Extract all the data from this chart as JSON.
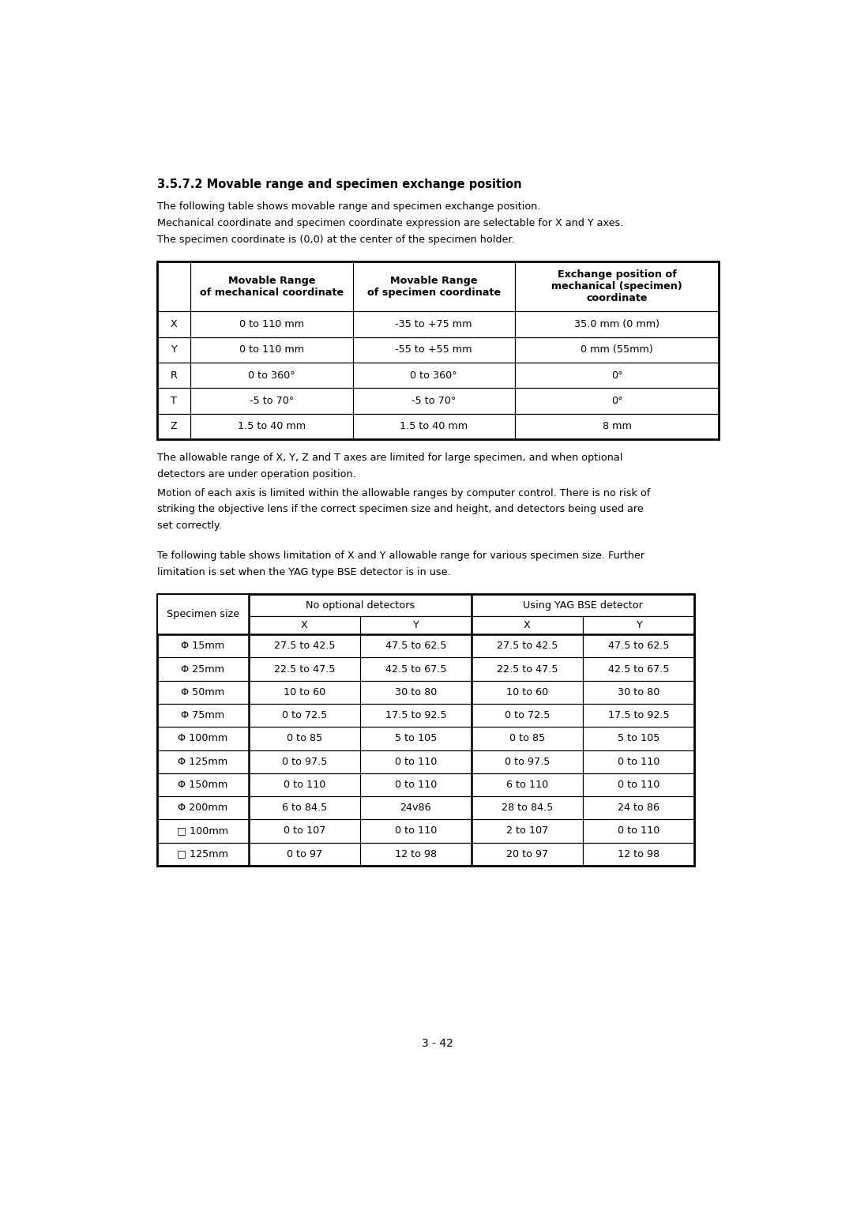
{
  "title": "3.5.7.2 Movable range and specimen exchange position",
  "intro_text": [
    "The following table shows movable range and specimen exchange position.",
    "Mechanical coordinate and specimen coordinate expression are selectable for X and Y axes.",
    "The specimen coordinate is (0,0) at the center of the specimen holder."
  ],
  "table1_headers": [
    "",
    "Movable Range\nof mechanical coordinate",
    "Movable Range\nof specimen coordinate",
    "Exchange position of\nmechanical (specimen)\ncoordinate"
  ],
  "table1_rows": [
    [
      "X",
      "0 to 110 mm",
      "-35 to +75 mm",
      "35.0 mm (0 mm)"
    ],
    [
      "Y",
      "0 to 110 mm",
      "-55 to +55 mm",
      "0 mm (55mm)"
    ],
    [
      "R",
      "0 to 360°",
      "0 to 360°",
      "0°"
    ],
    [
      "T",
      "-5 to 70°",
      "-5 to 70°",
      "0°"
    ],
    [
      "Z",
      "1.5 to 40 mm",
      "1.5 to 40 mm",
      "8 mm"
    ]
  ],
  "middle_text": [
    "The allowable range of X, Y, Z and T axes are limited for large specimen, and when optional",
    "detectors are under operation position.",
    "Motion of each axis is limited within the allowable ranges by computer control. There is no risk of",
    "striking the objective lens if the correct specimen size and height, and detectors being used are",
    "set correctly."
  ],
  "intro_text2": [
    "Te following table shows limitation of X and Y allowable range for various specimen size. Further",
    "limitation is set when the YAG type BSE detector is in use."
  ],
  "table2_rows": [
    [
      "Φ 15mm",
      "27.5 to 42.5",
      "47.5 to 62.5",
      "27.5 to 42.5",
      "47.5 to 62.5"
    ],
    [
      "Φ 25mm",
      "22.5 to 47.5",
      "42.5 to 67.5",
      "22.5 to 47.5",
      "42.5 to 67.5"
    ],
    [
      "Φ 50mm",
      "10 to 60",
      "30 to 80",
      "10 to 60",
      "30 to 80"
    ],
    [
      "Φ 75mm",
      "0 to 72.5",
      "17.5 to 92.5",
      "0 to 72.5",
      "17.5 to 92.5"
    ],
    [
      "Φ 100mm",
      "0 to 85",
      "5 to 105",
      "0 to 85",
      "5 to 105"
    ],
    [
      "Φ 125mm",
      "0 to 97.5",
      "0 to 110",
      "0 to 97.5",
      "0 to 110"
    ],
    [
      "Φ 150mm",
      "0 to 110",
      "0 to 110",
      "6 to 110",
      "0 to 110"
    ],
    [
      "Φ 200mm",
      "6 to 84.5",
      "24v86",
      "28 to 84.5",
      "24 to 86"
    ],
    [
      "□ 100mm",
      "0 to 107",
      "0 to 110",
      "2 to 107",
      "0 to 110"
    ],
    [
      "□ 125mm",
      "0 to 97",
      "12 to 98",
      "20 to 97",
      "12 to 98"
    ]
  ],
  "page_number": "3 - 42",
  "bg_color": "#ffffff",
  "text_color": "#000000",
  "border_color": "#000000"
}
